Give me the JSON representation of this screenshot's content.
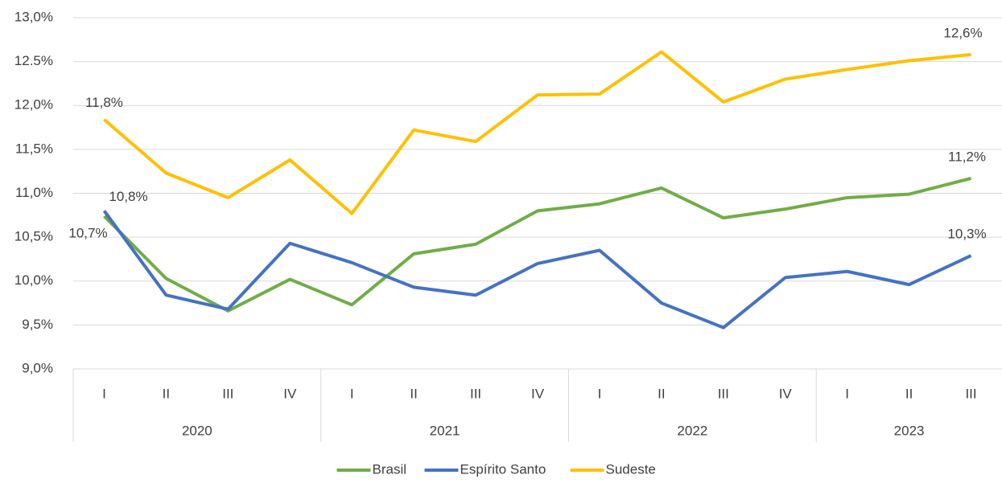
{
  "chart_data": {
    "type": "line",
    "groups": [
      {
        "label": "2020",
        "categories": [
          "I",
          "II",
          "III",
          "IV"
        ]
      },
      {
        "label": "2021",
        "categories": [
          "I",
          "II",
          "III",
          "IV"
        ]
      },
      {
        "label": "2022",
        "categories": [
          "I",
          "II",
          "III",
          "IV"
        ]
      },
      {
        "label": "2023",
        "categories": [
          "I",
          "II",
          "III"
        ]
      }
    ],
    "series": [
      {
        "name": "Brasil",
        "color": "#70ad47",
        "values": [
          10.74,
          10.03,
          9.66,
          10.02,
          9.73,
          10.31,
          10.42,
          10.8,
          10.88,
          11.06,
          10.72,
          10.82,
          10.95,
          10.99,
          11.17
        ],
        "value_labels": [
          "10,7%",
          null,
          null,
          null,
          null,
          null,
          null,
          null,
          null,
          null,
          null,
          null,
          null,
          null,
          "11,2%"
        ]
      },
      {
        "name": "Espírito Santo",
        "color": "#4472c4",
        "values": [
          10.8,
          9.84,
          9.68,
          10.43,
          10.21,
          9.93,
          9.84,
          10.2,
          10.35,
          9.75,
          9.47,
          10.04,
          10.11,
          9.96,
          10.29
        ],
        "value_labels": [
          "10,8%",
          null,
          null,
          null,
          null,
          null,
          null,
          null,
          null,
          null,
          null,
          null,
          null,
          null,
          "10,3%"
        ]
      },
      {
        "name": "Sudeste",
        "color": "#ffc000",
        "values": [
          11.84,
          11.23,
          10.95,
          11.38,
          10.77,
          11.72,
          11.59,
          12.12,
          12.13,
          12.61,
          12.04,
          12.3,
          12.41,
          12.51,
          12.58
        ],
        "value_labels": [
          "11,8%",
          null,
          null,
          null,
          null,
          null,
          null,
          null,
          null,
          null,
          null,
          null,
          null,
          null,
          "12,6%"
        ]
      }
    ],
    "ylim": [
      9.0,
      13.0
    ],
    "yticks": [
      {
        "value": 9.0,
        "label": "9,0%"
      },
      {
        "value": 9.5,
        "label": "9,5%"
      },
      {
        "value": 10.0,
        "label": "10,0%"
      },
      {
        "value": 10.5,
        "label": "10,5%"
      },
      {
        "value": 11.0,
        "label": "11,0%"
      },
      {
        "value": 11.5,
        "label": "11,5%"
      },
      {
        "value": 12.0,
        "label": "12,0%"
      },
      {
        "value": 12.5,
        "label": "12.5%"
      },
      {
        "value": 13.0,
        "label": "13,0%"
      }
    ],
    "grid": true,
    "legend": "bottom"
  }
}
